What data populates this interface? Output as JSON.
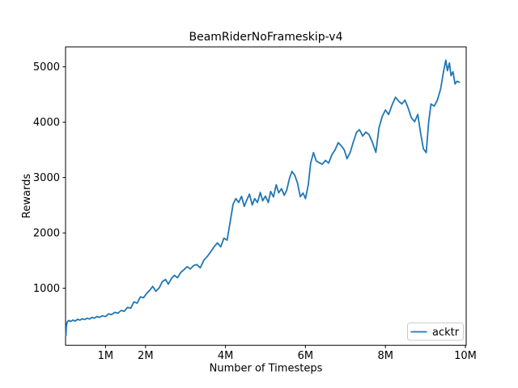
{
  "figure": {
    "title": "BeamRiderNoFrameskip-v4",
    "xlabel": "Number of Timesteps",
    "ylabel": "Rewards",
    "background": "#ffffff"
  },
  "colors": {
    "line": "#1f77b4",
    "text": "#000000",
    "spine": "#000000",
    "legend_border": "#cccccc",
    "legend_background": "#ffffff"
  },
  "legend": {
    "position": "lower right",
    "entries": [
      {
        "label": "acktr",
        "color": "#1f77b4"
      }
    ]
  },
  "chart_data": {
    "type": "line",
    "title": "BeamRiderNoFrameskip-v4",
    "xlabel": "Number of Timesteps",
    "ylabel": "Rewards",
    "x_unit": "timesteps (millions)",
    "grid": false,
    "legend_position": "lower right",
    "xlim": [
      0,
      10.02
    ],
    "ylim": [
      -30,
      5360
    ],
    "x_ticks": [
      {
        "value": 1,
        "label": "1M"
      },
      {
        "value": 2,
        "label": "2M"
      },
      {
        "value": 4,
        "label": "4M"
      },
      {
        "value": 6,
        "label": "6M"
      },
      {
        "value": 8,
        "label": "8M"
      },
      {
        "value": 10,
        "label": "10M"
      }
    ],
    "y_ticks": [
      {
        "value": 1000,
        "label": "1000"
      },
      {
        "value": 2000,
        "label": "2000"
      },
      {
        "value": 3000,
        "label": "3000"
      },
      {
        "value": 4000,
        "label": "4000"
      },
      {
        "value": 5000,
        "label": "5000"
      }
    ],
    "series": [
      {
        "name": "acktr",
        "color": "#1f77b4",
        "points": [
          [
            0.01,
            150
          ],
          [
            0.02,
            320
          ],
          [
            0.04,
            390
          ],
          [
            0.08,
            420
          ],
          [
            0.13,
            400
          ],
          [
            0.18,
            425
          ],
          [
            0.24,
            410
          ],
          [
            0.3,
            440
          ],
          [
            0.36,
            425
          ],
          [
            0.42,
            450
          ],
          [
            0.48,
            435
          ],
          [
            0.54,
            460
          ],
          [
            0.6,
            445
          ],
          [
            0.66,
            475
          ],
          [
            0.72,
            460
          ],
          [
            0.78,
            490
          ],
          [
            0.85,
            475
          ],
          [
            0.92,
            505
          ],
          [
            1.0,
            490
          ],
          [
            1.08,
            540
          ],
          [
            1.15,
            525
          ],
          [
            1.23,
            565
          ],
          [
            1.31,
            550
          ],
          [
            1.39,
            600
          ],
          [
            1.47,
            585
          ],
          [
            1.55,
            655
          ],
          [
            1.63,
            640
          ],
          [
            1.71,
            755
          ],
          [
            1.79,
            730
          ],
          [
            1.87,
            845
          ],
          [
            1.95,
            830
          ],
          [
            2.02,
            900
          ],
          [
            2.1,
            960
          ],
          [
            2.18,
            1035
          ],
          [
            2.26,
            945
          ],
          [
            2.34,
            1005
          ],
          [
            2.42,
            1120
          ],
          [
            2.5,
            1160
          ],
          [
            2.57,
            1075
          ],
          [
            2.65,
            1180
          ],
          [
            2.72,
            1235
          ],
          [
            2.8,
            1190
          ],
          [
            2.88,
            1285
          ],
          [
            2.96,
            1335
          ],
          [
            3.04,
            1390
          ],
          [
            3.12,
            1350
          ],
          [
            3.2,
            1410
          ],
          [
            3.28,
            1430
          ],
          [
            3.37,
            1370
          ],
          [
            3.46,
            1510
          ],
          [
            3.55,
            1580
          ],
          [
            3.64,
            1670
          ],
          [
            3.72,
            1755
          ],
          [
            3.8,
            1820
          ],
          [
            3.88,
            1750
          ],
          [
            3.96,
            1905
          ],
          [
            4.04,
            1870
          ],
          [
            4.12,
            2210
          ],
          [
            4.19,
            2520
          ],
          [
            4.26,
            2620
          ],
          [
            4.33,
            2550
          ],
          [
            4.4,
            2660
          ],
          [
            4.47,
            2480
          ],
          [
            4.53,
            2590
          ],
          [
            4.6,
            2700
          ],
          [
            4.67,
            2505
          ],
          [
            4.73,
            2620
          ],
          [
            4.8,
            2550
          ],
          [
            4.87,
            2730
          ],
          [
            4.93,
            2580
          ],
          [
            5.0,
            2665
          ],
          [
            5.07,
            2550
          ],
          [
            5.13,
            2750
          ],
          [
            5.2,
            2650
          ],
          [
            5.27,
            2870
          ],
          [
            5.33,
            2725
          ],
          [
            5.4,
            2800
          ],
          [
            5.47,
            2680
          ],
          [
            5.53,
            2770
          ],
          [
            5.6,
            2980
          ],
          [
            5.66,
            3110
          ],
          [
            5.73,
            3045
          ],
          [
            5.8,
            2905
          ],
          [
            5.87,
            2655
          ],
          [
            5.94,
            2720
          ],
          [
            6.0,
            2620
          ],
          [
            6.07,
            2870
          ],
          [
            6.13,
            3260
          ],
          [
            6.2,
            3450
          ],
          [
            6.27,
            3300
          ],
          [
            6.34,
            3270
          ],
          [
            6.42,
            3240
          ],
          [
            6.5,
            3310
          ],
          [
            6.58,
            3260
          ],
          [
            6.66,
            3410
          ],
          [
            6.74,
            3500
          ],
          [
            6.82,
            3630
          ],
          [
            6.9,
            3570
          ],
          [
            6.97,
            3500
          ],
          [
            7.04,
            3340
          ],
          [
            7.12,
            3455
          ],
          [
            7.2,
            3650
          ],
          [
            7.28,
            3820
          ],
          [
            7.35,
            3865
          ],
          [
            7.43,
            3750
          ],
          [
            7.51,
            3820
          ],
          [
            7.59,
            3775
          ],
          [
            7.67,
            3645
          ],
          [
            7.76,
            3455
          ],
          [
            7.84,
            3905
          ],
          [
            7.92,
            4105
          ],
          [
            8.0,
            4220
          ],
          [
            8.08,
            4140
          ],
          [
            8.16,
            4300
          ],
          [
            8.25,
            4450
          ],
          [
            8.33,
            4380
          ],
          [
            8.41,
            4330
          ],
          [
            8.49,
            4400
          ],
          [
            8.57,
            4250
          ],
          [
            8.65,
            4080
          ],
          [
            8.73,
            4010
          ],
          [
            8.81,
            4140
          ],
          [
            8.88,
            3800
          ],
          [
            8.95,
            3520
          ],
          [
            9.02,
            3450
          ],
          [
            9.08,
            4000
          ],
          [
            9.14,
            4330
          ],
          [
            9.22,
            4290
          ],
          [
            9.3,
            4400
          ],
          [
            9.38,
            4600
          ],
          [
            9.45,
            4900
          ],
          [
            9.51,
            5120
          ],
          [
            9.55,
            4930
          ],
          [
            9.6,
            5070
          ],
          [
            9.64,
            4840
          ],
          [
            9.69,
            4910
          ],
          [
            9.74,
            4690
          ],
          [
            9.79,
            4740
          ],
          [
            9.85,
            4720
          ]
        ]
      }
    ]
  }
}
